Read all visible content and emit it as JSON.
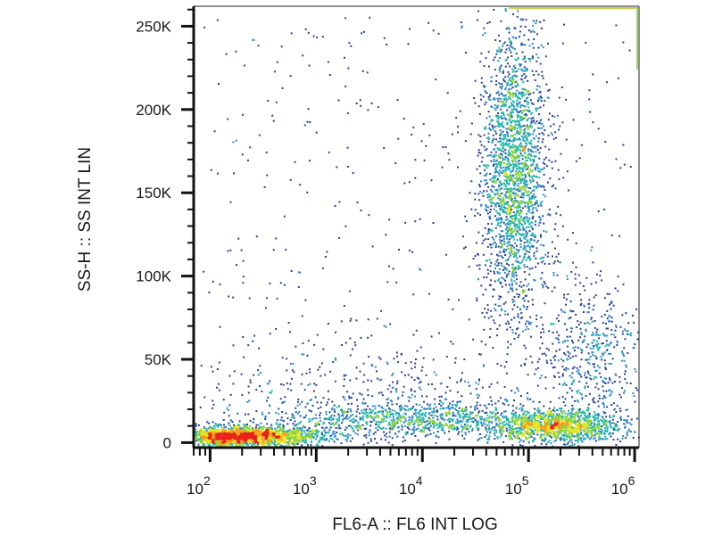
{
  "chart_data": {
    "type": "scatter",
    "title": "",
    "xlabel": "FL6-A :: FL6 INT LOG",
    "ylabel": "SS-H :: SS INT LIN",
    "x_scale": "log",
    "y_scale": "linear",
    "xlim": [
      70,
      1100000
    ],
    "ylim": [
      -3000,
      262000
    ],
    "grid": false,
    "x_ticks": [
      {
        "value": 100,
        "base": "10",
        "exp": "2"
      },
      {
        "value": 1000,
        "base": "10",
        "exp": "3"
      },
      {
        "value": 10000,
        "base": "10",
        "exp": "4"
      },
      {
        "value": 100000,
        "base": "10",
        "exp": "5"
      },
      {
        "value": 1000000,
        "base": "10",
        "exp": "6"
      }
    ],
    "y_ticks": [
      {
        "value": 0,
        "label": "0"
      },
      {
        "value": 50000,
        "label": "50K"
      },
      {
        "value": 100000,
        "label": "100K"
      },
      {
        "value": 150000,
        "label": "150K"
      },
      {
        "value": 200000,
        "label": "200K"
      },
      {
        "value": 250000,
        "label": "250K"
      }
    ],
    "color_scale": "density (blue → cyan → green → yellow → red)",
    "populations": [
      {
        "center_x": 250,
        "center_y": 8000,
        "density": "very high"
      },
      {
        "center_x": 120000,
        "center_y": 12000,
        "density": "high"
      },
      {
        "center_x": 10000,
        "center_y": 15000,
        "density": "medium"
      },
      {
        "center_x": 80000,
        "center_y": 150000,
        "density": "high"
      },
      {
        "center_x": 300000,
        "center_y": 50000,
        "density": "low"
      }
    ]
  }
}
